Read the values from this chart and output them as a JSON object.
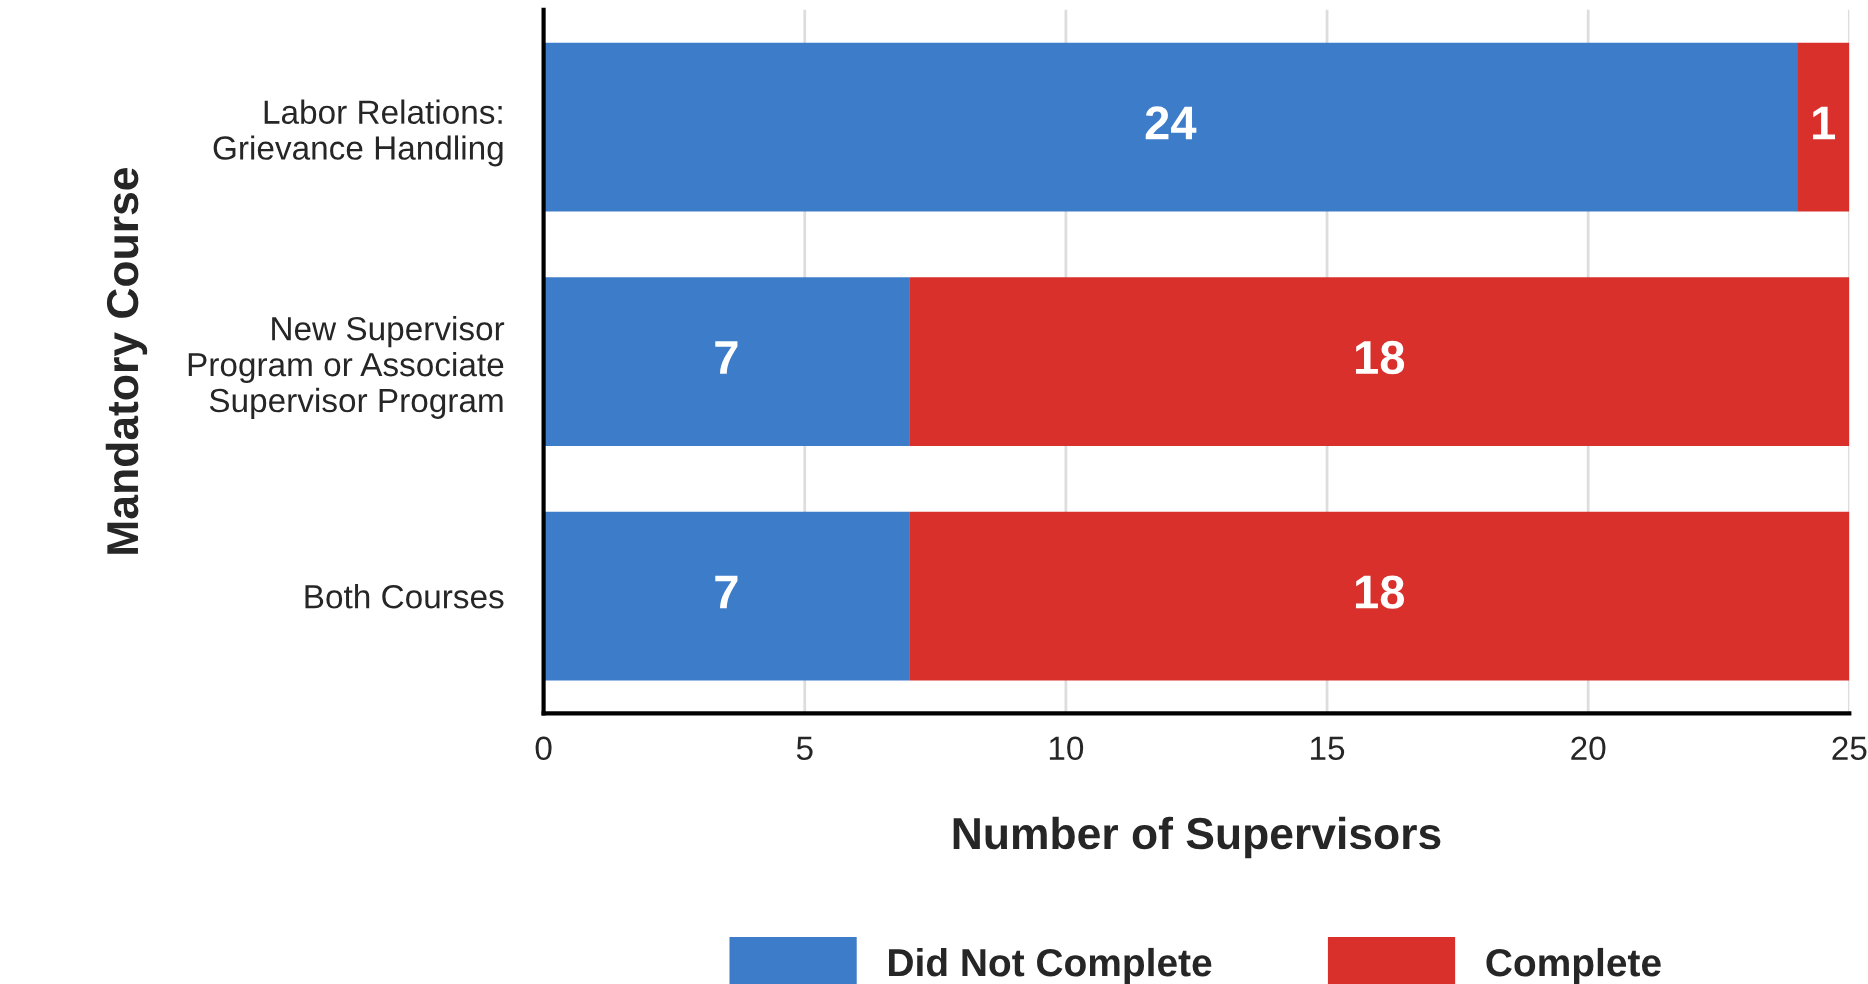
{
  "chart_data": {
    "type": "bar",
    "orientation": "horizontal",
    "stacked": true,
    "categories": [
      "Labor Relations:\nGrievance Handling",
      "New Supervisor\nProgram or Associate\nSupervisor Program",
      "Both Courses"
    ],
    "series": [
      {
        "name": "Did Not Complete",
        "color": "#3d7cc9",
        "values": [
          24,
          7,
          7
        ]
      },
      {
        "name": "Complete",
        "color": "#d9302c",
        "values": [
          1,
          18,
          18
        ]
      }
    ],
    "xlabel": "Number of Supervisors",
    "ylabel": "Mandatory Course",
    "xlim": [
      0,
      25
    ],
    "xticks": [
      0,
      5,
      10,
      15,
      20,
      25
    ],
    "grid": "x",
    "legend": "bottom",
    "data_labels": true
  }
}
